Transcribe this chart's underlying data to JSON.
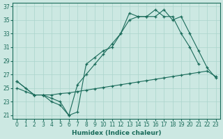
{
  "xlabel": "Humidex (Indice chaleur)",
  "background_color": "#cce8e2",
  "grid_color": "#aad4cc",
  "line_color": "#1a6b5a",
  "xlim": [
    -0.5,
    23.5
  ],
  "ylim": [
    20.5,
    37.5
  ],
  "yticks": [
    21,
    23,
    25,
    27,
    29,
    31,
    33,
    35,
    37
  ],
  "xticks": [
    0,
    1,
    2,
    3,
    4,
    5,
    6,
    7,
    8,
    9,
    10,
    11,
    12,
    13,
    14,
    15,
    16,
    17,
    18,
    19,
    20,
    21,
    22,
    23
  ],
  "s1_x": [
    0,
    1,
    2,
    3,
    4,
    5,
    6,
    7,
    8,
    9,
    10,
    11,
    12,
    13,
    14,
    15,
    16,
    17,
    18,
    19,
    20,
    21
  ],
  "s1_y": [
    26.0,
    25.0,
    24.0,
    24.0,
    23.0,
    22.5,
    21.0,
    21.5,
    28.5,
    29.5,
    30.5,
    31.0,
    33.0,
    35.0,
    35.5,
    35.5,
    36.5,
    35.5,
    35.5,
    33.0,
    31.0,
    28.5
  ],
  "s2_x": [
    0,
    2,
    3,
    4,
    5,
    6,
    7,
    8,
    9,
    10,
    11,
    12,
    13,
    14,
    15,
    16,
    17,
    18,
    19,
    20,
    21,
    22,
    23
  ],
  "s2_y": [
    26.0,
    24.0,
    24.0,
    23.5,
    23.0,
    21.0,
    25.5,
    27.0,
    28.5,
    30.0,
    31.5,
    33.0,
    36.0,
    35.5,
    35.5,
    35.5,
    36.5,
    35.0,
    35.5,
    33.0,
    30.5,
    28.0,
    26.5
  ],
  "s3_x": [
    0,
    1,
    2,
    3,
    4,
    5,
    6,
    7,
    8,
    9,
    10,
    11,
    12,
    13,
    14,
    15,
    16,
    17,
    18,
    19,
    20,
    21,
    22,
    23
  ],
  "s3_y": [
    25.0,
    24.5,
    24.0,
    24.0,
    24.0,
    24.2,
    24.3,
    24.5,
    24.7,
    24.9,
    25.1,
    25.3,
    25.5,
    25.7,
    25.9,
    26.1,
    26.3,
    26.5,
    26.7,
    26.9,
    27.1,
    27.3,
    27.5,
    26.7
  ]
}
